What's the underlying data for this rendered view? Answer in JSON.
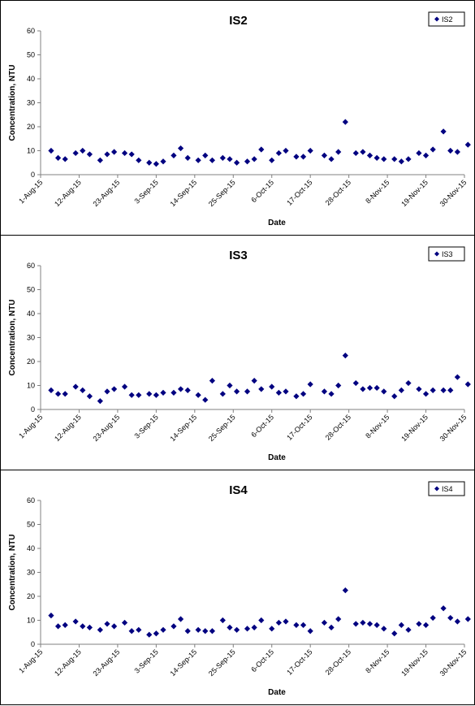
{
  "colors": {
    "marker": "#000080",
    "axis": "#808080",
    "frame": "#000000"
  },
  "x_ticks": [
    "1-Aug-15",
    "12-Aug-15",
    "23-Aug-15",
    "3-Sep-15",
    "14-Sep-15",
    "25-Sep-15",
    "6-Oct-15",
    "17-Oct-15",
    "28-Oct-15",
    "8-Nov-15",
    "19-Nov-15",
    "30-Nov-15"
  ],
  "chart_data": [
    {
      "type": "scatter",
      "title": "IS2",
      "xlabel": "Date",
      "ylabel": "Concentration, NTU",
      "xlim": [
        "2015-08-01",
        "2015-11-30"
      ],
      "ylim": [
        0,
        60
      ],
      "y_ticks": [
        0,
        10,
        20,
        30,
        40,
        50,
        60
      ],
      "legend_position": "top-right",
      "grid": false,
      "series": [
        {
          "name": "IS2",
          "marker": "diamond",
          "points": [
            [
              "2015-08-04",
              10.0
            ],
            [
              "2015-08-06",
              7.0
            ],
            [
              "2015-08-08",
              6.5
            ],
            [
              "2015-08-11",
              9.0
            ],
            [
              "2015-08-13",
              10.0
            ],
            [
              "2015-08-15",
              8.5
            ],
            [
              "2015-08-18",
              6.0
            ],
            [
              "2015-08-20",
              8.5
            ],
            [
              "2015-08-22",
              9.5
            ],
            [
              "2015-08-25",
              9.0
            ],
            [
              "2015-08-27",
              8.5
            ],
            [
              "2015-08-29",
              6.0
            ],
            [
              "2015-09-01",
              5.0
            ],
            [
              "2015-09-03",
              4.5
            ],
            [
              "2015-09-05",
              5.5
            ],
            [
              "2015-09-08",
              8.0
            ],
            [
              "2015-09-10",
              11.0
            ],
            [
              "2015-09-12",
              7.0
            ],
            [
              "2015-09-15",
              6.0
            ],
            [
              "2015-09-17",
              8.0
            ],
            [
              "2015-09-19",
              6.0
            ],
            [
              "2015-09-22",
              7.0
            ],
            [
              "2015-09-24",
              6.5
            ],
            [
              "2015-09-26",
              5.0
            ],
            [
              "2015-09-29",
              5.5
            ],
            [
              "2015-10-01",
              6.5
            ],
            [
              "2015-10-03",
              10.5
            ],
            [
              "2015-10-06",
              6.0
            ],
            [
              "2015-10-08",
              9.0
            ],
            [
              "2015-10-10",
              10.0
            ],
            [
              "2015-10-13",
              7.5
            ],
            [
              "2015-10-15",
              7.5
            ],
            [
              "2015-10-17",
              10.0
            ],
            [
              "2015-10-21",
              8.0
            ],
            [
              "2015-10-23",
              6.5
            ],
            [
              "2015-10-25",
              9.5
            ],
            [
              "2015-10-27",
              22.0
            ],
            [
              "2015-10-30",
              9.0
            ],
            [
              "2015-11-01",
              9.5
            ],
            [
              "2015-11-03",
              8.0
            ],
            [
              "2015-11-05",
              7.0
            ],
            [
              "2015-11-07",
              6.5
            ],
            [
              "2015-11-10",
              6.5
            ],
            [
              "2015-11-12",
              5.5
            ],
            [
              "2015-11-14",
              6.5
            ],
            [
              "2015-11-17",
              9.0
            ],
            [
              "2015-11-19",
              8.0
            ],
            [
              "2015-11-21",
              10.5
            ],
            [
              "2015-11-24",
              18.0
            ],
            [
              "2015-11-26",
              10.0
            ],
            [
              "2015-11-28",
              9.5
            ],
            [
              "2015-12-01",
              12.5
            ]
          ]
        }
      ]
    },
    {
      "type": "scatter",
      "title": "IS3",
      "xlabel": "Date",
      "ylabel": "Concentration, NTU",
      "xlim": [
        "2015-08-01",
        "2015-11-30"
      ],
      "ylim": [
        0,
        60
      ],
      "y_ticks": [
        0,
        10,
        20,
        30,
        40,
        50,
        60
      ],
      "legend_position": "top-right",
      "grid": false,
      "series": [
        {
          "name": "IS3",
          "marker": "diamond",
          "points": [
            [
              "2015-08-04",
              8.0
            ],
            [
              "2015-08-06",
              6.5
            ],
            [
              "2015-08-08",
              6.5
            ],
            [
              "2015-08-11",
              9.5
            ],
            [
              "2015-08-13",
              8.0
            ],
            [
              "2015-08-15",
              5.5
            ],
            [
              "2015-08-18",
              3.5
            ],
            [
              "2015-08-20",
              7.5
            ],
            [
              "2015-08-22",
              8.5
            ],
            [
              "2015-08-25",
              9.5
            ],
            [
              "2015-08-27",
              6.0
            ],
            [
              "2015-08-29",
              6.0
            ],
            [
              "2015-09-01",
              6.5
            ],
            [
              "2015-09-03",
              6.0
            ],
            [
              "2015-09-05",
              7.0
            ],
            [
              "2015-09-08",
              7.0
            ],
            [
              "2015-09-10",
              8.5
            ],
            [
              "2015-09-12",
              8.0
            ],
            [
              "2015-09-15",
              6.0
            ],
            [
              "2015-09-17",
              4.0
            ],
            [
              "2015-09-19",
              12.0
            ],
            [
              "2015-09-22",
              6.5
            ],
            [
              "2015-09-24",
              10.0
            ],
            [
              "2015-09-26",
              7.5
            ],
            [
              "2015-09-29",
              7.5
            ],
            [
              "2015-10-01",
              12.0
            ],
            [
              "2015-10-03",
              8.5
            ],
            [
              "2015-10-06",
              9.5
            ],
            [
              "2015-10-08",
              7.0
            ],
            [
              "2015-10-10",
              7.5
            ],
            [
              "2015-10-13",
              5.5
            ],
            [
              "2015-10-15",
              6.5
            ],
            [
              "2015-10-17",
              10.5
            ],
            [
              "2015-10-21",
              7.5
            ],
            [
              "2015-10-23",
              6.5
            ],
            [
              "2015-10-25",
              10.0
            ],
            [
              "2015-10-27",
              22.5
            ],
            [
              "2015-10-30",
              11.0
            ],
            [
              "2015-11-01",
              8.5
            ],
            [
              "2015-11-03",
              9.0
            ],
            [
              "2015-11-05",
              9.0
            ],
            [
              "2015-11-07",
              7.5
            ],
            [
              "2015-11-10",
              5.5
            ],
            [
              "2015-11-12",
              8.0
            ],
            [
              "2015-11-14",
              11.0
            ],
            [
              "2015-11-17",
              8.5
            ],
            [
              "2015-11-19",
              6.5
            ],
            [
              "2015-11-21",
              8.0
            ],
            [
              "2015-11-24",
              8.0
            ],
            [
              "2015-11-26",
              8.0
            ],
            [
              "2015-11-28",
              13.5
            ],
            [
              "2015-12-01",
              10.5
            ]
          ]
        }
      ]
    },
    {
      "type": "scatter",
      "title": "IS4",
      "xlabel": "Date",
      "ylabel": "Concentration, NTU",
      "xlim": [
        "2015-08-01",
        "2015-11-30"
      ],
      "ylim": [
        0,
        60
      ],
      "y_ticks": [
        0,
        10,
        20,
        30,
        40,
        50,
        60
      ],
      "legend_position": "top-right",
      "grid": false,
      "series": [
        {
          "name": "IS4",
          "marker": "diamond",
          "points": [
            [
              "2015-08-04",
              12.0
            ],
            [
              "2015-08-06",
              7.5
            ],
            [
              "2015-08-08",
              8.0
            ],
            [
              "2015-08-11",
              9.5
            ],
            [
              "2015-08-13",
              7.5
            ],
            [
              "2015-08-15",
              7.0
            ],
            [
              "2015-08-18",
              6.0
            ],
            [
              "2015-08-20",
              8.5
            ],
            [
              "2015-08-22",
              7.5
            ],
            [
              "2015-08-25",
              9.0
            ],
            [
              "2015-08-27",
              5.5
            ],
            [
              "2015-08-29",
              6.0
            ],
            [
              "2015-09-01",
              4.0
            ],
            [
              "2015-09-03",
              4.5
            ],
            [
              "2015-09-05",
              6.0
            ],
            [
              "2015-09-08",
              7.5
            ],
            [
              "2015-09-10",
              10.5
            ],
            [
              "2015-09-12",
              5.5
            ],
            [
              "2015-09-15",
              6.0
            ],
            [
              "2015-09-17",
              5.5
            ],
            [
              "2015-09-19",
              5.5
            ],
            [
              "2015-09-22",
              10.0
            ],
            [
              "2015-09-24",
              7.0
            ],
            [
              "2015-09-26",
              6.0
            ],
            [
              "2015-09-29",
              6.5
            ],
            [
              "2015-10-01",
              7.0
            ],
            [
              "2015-10-03",
              10.0
            ],
            [
              "2015-10-06",
              6.5
            ],
            [
              "2015-10-08",
              9.0
            ],
            [
              "2015-10-10",
              9.5
            ],
            [
              "2015-10-13",
              8.0
            ],
            [
              "2015-10-15",
              8.0
            ],
            [
              "2015-10-17",
              5.5
            ],
            [
              "2015-10-21",
              9.0
            ],
            [
              "2015-10-23",
              7.0
            ],
            [
              "2015-10-25",
              10.5
            ],
            [
              "2015-10-27",
              22.5
            ],
            [
              "2015-10-30",
              8.5
            ],
            [
              "2015-11-01",
              9.0
            ],
            [
              "2015-11-03",
              8.5
            ],
            [
              "2015-11-05",
              8.0
            ],
            [
              "2015-11-07",
              6.5
            ],
            [
              "2015-11-10",
              4.5
            ],
            [
              "2015-11-12",
              8.0
            ],
            [
              "2015-11-14",
              6.0
            ],
            [
              "2015-11-17",
              8.5
            ],
            [
              "2015-11-19",
              8.0
            ],
            [
              "2015-11-21",
              11.0
            ],
            [
              "2015-11-24",
              15.0
            ],
            [
              "2015-11-26",
              11.0
            ],
            [
              "2015-11-28",
              9.5
            ],
            [
              "2015-12-01",
              10.5
            ]
          ]
        }
      ]
    }
  ]
}
